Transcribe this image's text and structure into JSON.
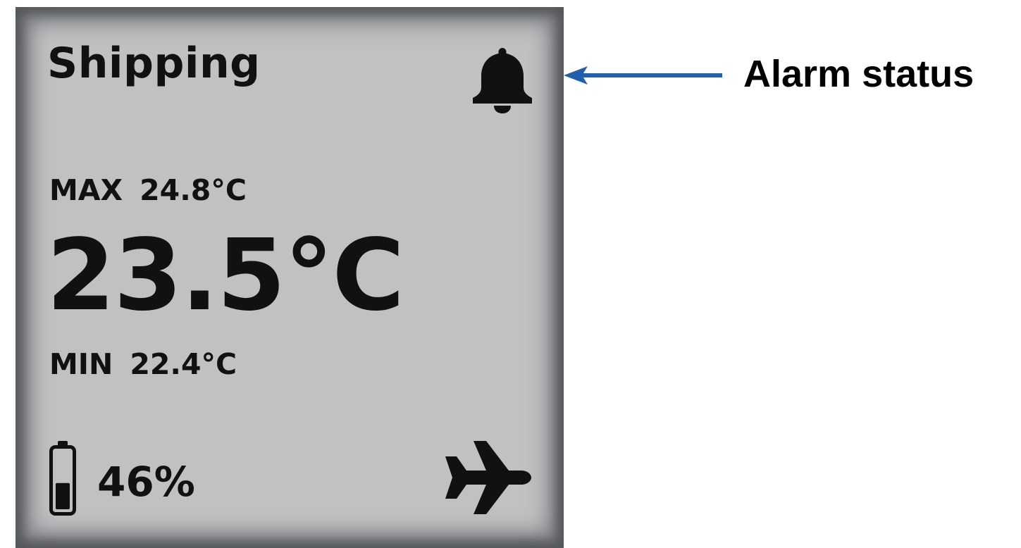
{
  "device": {
    "title": "Shipping",
    "alarm_icon": "bell-icon",
    "max_label": "MAX",
    "max_value": "24.8°C",
    "current_temperature": "23.5°C",
    "min_label": "MIN",
    "min_value": "22.4°C",
    "battery_icon": "battery-icon",
    "battery_level_fraction": 0.46,
    "battery_text": "46%",
    "mode_icon": "airplane-icon"
  },
  "annotation": {
    "label": "Alarm status",
    "arrow_color": "#1f5fae"
  },
  "colors": {
    "screen_background": "#c0c1c3",
    "bezel": "#53565a",
    "text": "#111111"
  }
}
